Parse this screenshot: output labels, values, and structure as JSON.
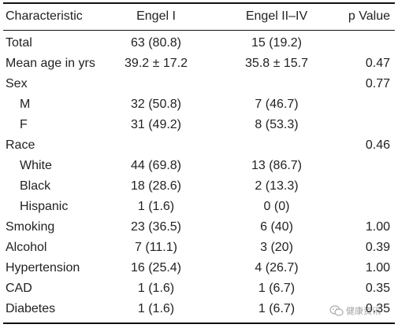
{
  "table": {
    "headers": {
      "characteristic": "Characteristic",
      "engel1": "Engel I",
      "engel2": "Engel II–IV",
      "p": "p Value"
    },
    "rows": [
      {
        "label": "Total",
        "engel1": "63 (80.8)",
        "engel2": "15 (19.2)",
        "p": ""
      },
      {
        "label": "Mean age in yrs",
        "engel1": "39.2 ± 17.2",
        "engel2": "35.8 ± 15.7",
        "p": "0.47"
      },
      {
        "label": "Sex",
        "engel1": "",
        "engel2": "",
        "p": "0.77"
      },
      {
        "label": "M",
        "engel1": "32 (50.8)",
        "engel2": "7 (46.7)",
        "p": ""
      },
      {
        "label": "F",
        "engel1": "31 (49.2)",
        "engel2": "8 (53.3)",
        "p": ""
      },
      {
        "label": "Race",
        "engel1": "",
        "engel2": "",
        "p": "0.46"
      },
      {
        "label": "White",
        "engel1": "44 (69.8)",
        "engel2": "13 (86.7)",
        "p": ""
      },
      {
        "label": "Black",
        "engel1": "18 (28.6)",
        "engel2": "2 (13.3)",
        "p": ""
      },
      {
        "label": "Hispanic",
        "engel1": "1 (1.6)",
        "engel2": "0 (0)",
        "p": ""
      },
      {
        "label": "Smoking",
        "engel1": "23 (36.5)",
        "engel2": "6 (40)",
        "p": "1.00"
      },
      {
        "label": "Alcohol",
        "engel1": "7 (11.1)",
        "engel2": "3 (20)",
        "p": "0.39"
      },
      {
        "label": "Hypertension",
        "engel1": "16 (25.4)",
        "engel2": "4 (26.7)",
        "p": "1.00"
      },
      {
        "label": "CAD",
        "engel1": "1 (1.6)",
        "engel2": "1 (6.7)",
        "p": "0.35"
      },
      {
        "label": "Diabetes",
        "engel1": "1 (1.6)",
        "engel2": "1 (6.7)",
        "p": "0.35"
      }
    ]
  },
  "watermark": {
    "text": "健康资讯",
    "icon": "wechat-icon"
  }
}
